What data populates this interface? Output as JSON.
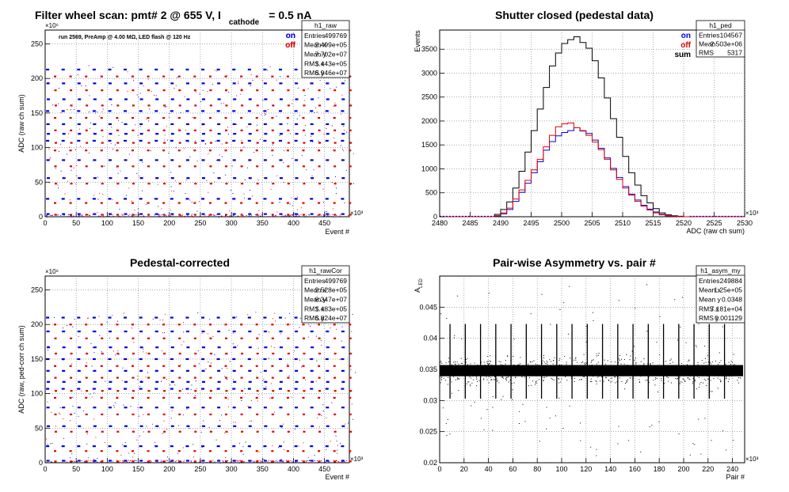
{
  "colors": {
    "on": "#0000dd",
    "off": "#dd0000",
    "sum": "#000000",
    "grid": "#777777"
  },
  "chart_data": [
    {
      "type": "scatter",
      "title_parts": {
        "main": "Filter wheel scan: pmt#   2 @   655 V, I",
        "sub": "cathode",
        "tail": "= 0.5 nA"
      },
      "annotation": "run 2569, PreAmp @ 4.00 MΩ, LED flash @  120 Hz",
      "xlabel": "Event #",
      "ylabel": "ADC (raw ch sum)",
      "x_exponent": "×10³",
      "y_exponent": "×10⁶",
      "xlim": [
        0,
        490
      ],
      "ylim": [
        0,
        270
      ],
      "xticks": [
        0,
        50,
        100,
        150,
        200,
        250,
        300,
        350,
        400,
        450
      ],
      "yticks": [
        0,
        50,
        100,
        150,
        200,
        250
      ],
      "legend": [
        {
          "label": "on",
          "color": "#0000dd"
        },
        {
          "label": "off",
          "color": "#dd0000"
        }
      ],
      "stats_box": {
        "title": "h1_raw",
        "rows": [
          [
            "Entries",
            "499769"
          ],
          [
            "Mean x",
            "2.499e+05"
          ],
          [
            "Mean y",
            "7.702e+07"
          ],
          [
            "RMS x",
            "1.443e+05"
          ],
          [
            "RMS y",
            "6.946e+07"
          ]
        ]
      },
      "cycle_period": 25,
      "on_levels": [
        213,
        193,
        170,
        153,
        134,
        120,
        110,
        82,
        56,
        26,
        4
      ],
      "off_levels": [
        203,
        183,
        161,
        143,
        125,
        107,
        96,
        73,
        48,
        20,
        3
      ]
    },
    {
      "type": "line",
      "title": "Shutter closed (pedestal data)",
      "xlabel": "ADC (raw ch sum)",
      "ylabel": "Events",
      "x_exponent": "×10³",
      "xlim": [
        2480,
        2530
      ],
      "ylim": [
        0,
        3900
      ],
      "xticks": [
        2480,
        2485,
        2490,
        2495,
        2500,
        2505,
        2510,
        2515,
        2520,
        2525,
        2530
      ],
      "yticks": [
        0,
        500,
        1000,
        1500,
        2000,
        2500,
        3000,
        3500
      ],
      "legend": [
        {
          "label": "on",
          "color": "#0000dd"
        },
        {
          "label": "off",
          "color": "#dd0000"
        },
        {
          "label": "sum",
          "color": "#000000"
        }
      ],
      "stats_box": {
        "title": "h1_ped",
        "rows": [
          [
            "Entries",
            "104567"
          ],
          [
            "Mean",
            "2.503e+06"
          ],
          [
            "RMS",
            "5317"
          ]
        ]
      },
      "bin_width": 1,
      "series": [
        {
          "name": "sum",
          "color": "#000000",
          "x": [
            2489,
            2490,
            2491,
            2492,
            2493,
            2494,
            2495,
            2496,
            2497,
            2498,
            2499,
            2500,
            2501,
            2502,
            2503,
            2504,
            2505,
            2506,
            2507,
            2508,
            2509,
            2510,
            2511,
            2512,
            2513,
            2514,
            2515,
            2516,
            2517,
            2518,
            2519,
            2520
          ],
          "values": [
            50,
            150,
            310,
            600,
            950,
            1350,
            1800,
            2250,
            2700,
            3150,
            3420,
            3620,
            3700,
            3760,
            3640,
            3520,
            3260,
            2900,
            2480,
            2050,
            1660,
            1260,
            920,
            660,
            440,
            290,
            170,
            80,
            40,
            20,
            10,
            0
          ]
        },
        {
          "name": "on",
          "color": "#0000dd",
          "x": [
            2489,
            2490,
            2491,
            2492,
            2493,
            2494,
            2495,
            2496,
            2497,
            2498,
            2499,
            2500,
            2501,
            2502,
            2503,
            2504,
            2505,
            2506,
            2507,
            2508,
            2509,
            2510,
            2511,
            2512,
            2513,
            2514,
            2515,
            2516,
            2517,
            2518,
            2519,
            2520
          ],
          "values": [
            20,
            60,
            150,
            320,
            510,
            700,
            920,
            1150,
            1390,
            1570,
            1690,
            1760,
            1800,
            1860,
            1790,
            1740,
            1600,
            1430,
            1230,
            1010,
            820,
            630,
            470,
            350,
            240,
            160,
            100,
            50,
            20,
            10,
            5,
            0
          ]
        },
        {
          "name": "off",
          "color": "#dd0000",
          "x": [
            2489,
            2490,
            2491,
            2492,
            2493,
            2494,
            2495,
            2496,
            2497,
            2498,
            2499,
            2500,
            2501,
            2502,
            2503,
            2504,
            2505,
            2506,
            2507,
            2508,
            2509,
            2510,
            2511,
            2512,
            2513,
            2514,
            2515,
            2516,
            2517,
            2518,
            2519,
            2520
          ],
          "values": [
            20,
            80,
            180,
            370,
            560,
            760,
            980,
            1200,
            1460,
            1700,
            1880,
            1940,
            1960,
            1860,
            1800,
            1700,
            1560,
            1400,
            1200,
            980,
            780,
            600,
            450,
            320,
            220,
            140,
            80,
            40,
            20,
            10,
            5,
            0
          ]
        }
      ]
    },
    {
      "type": "scatter",
      "title": "Pedestal-corrected",
      "xlabel": "Event #",
      "ylabel": "ADC (raw, ped-corr ch sum)",
      "x_exponent": "×10³",
      "y_exponent": "×10⁶",
      "xlim": [
        0,
        490
      ],
      "ylim": [
        0,
        270
      ],
      "xticks": [
        0,
        50,
        100,
        150,
        200,
        250,
        300,
        350,
        400,
        450
      ],
      "yticks": [
        0,
        50,
        100,
        150,
        200,
        250
      ],
      "legend": [
        {
          "label": "on",
          "color": "#0000dd"
        },
        {
          "label": "off",
          "color": "#dd0000"
        }
      ],
      "stats_box": {
        "title": "h1_rawCor",
        "rows": [
          [
            "Entries",
            "499769"
          ],
          [
            "Mean x",
            "2.528e+05"
          ],
          [
            "Mean y",
            "8.347e+07"
          ],
          [
            "RMS x",
            "1.483e+05"
          ],
          [
            "RMS y",
            "6.824e+07"
          ]
        ]
      },
      "cycle_period": 25,
      "on_levels": [
        210,
        190,
        167,
        150,
        133,
        117,
        107,
        80,
        53,
        24,
        3
      ],
      "off_levels": [
        200,
        180,
        158,
        140,
        123,
        104,
        94,
        70,
        45,
        17,
        2
      ]
    },
    {
      "type": "scatter",
      "title": "Pair-wise Asymmetry vs. pair #",
      "xlabel": "Pair #",
      "ylabel": "A_LED",
      "ylabel_main": "A",
      "ylabel_sub": "LED",
      "x_exponent": "×10³",
      "xlim": [
        0,
        250
      ],
      "ylim": [
        0.02,
        0.05
      ],
      "xticks": [
        0,
        20,
        40,
        60,
        80,
        100,
        120,
        140,
        160,
        180,
        200,
        220,
        240
      ],
      "yticks": [
        0.02,
        0.025,
        0.03,
        0.035,
        0.04,
        0.045
      ],
      "ytick_labels": [
        "0.02",
        "0.025",
        "0.03",
        "0.035",
        "0.04",
        "0.045"
      ],
      "stats_box": {
        "title": "h1_asym_my",
        "rows": [
          [
            "Entries",
            "249884"
          ],
          [
            "Mean x",
            "1.25e+05"
          ],
          [
            "Mean y",
            "0.0348"
          ],
          [
            "RMS x",
            "7.181e+04"
          ],
          [
            "RMS y",
            "0.001129"
          ]
        ]
      },
      "center": 0.0348,
      "band_halfwidth": 0.0009,
      "spike_period": 12.5,
      "spike_up": 0.0075,
      "spike_down": 0.0045
    }
  ]
}
